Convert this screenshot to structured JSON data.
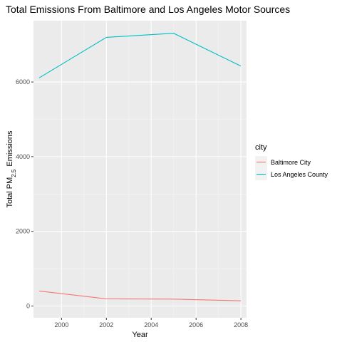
{
  "chart_data": {
    "type": "line",
    "title": "Total Emissions From Baltimore and Los Angeles Motor Sources",
    "xlabel": "Year",
    "ylabel_prefix": "Total PM",
    "ylabel_subscript": "2.5",
    "ylabel_suffix": " Emissions",
    "x": [
      1999,
      2002,
      2005,
      2008
    ],
    "xlim": [
      1998.75,
      2008.25
    ],
    "ylim": [
      -315,
      7642
    ],
    "x_ticks": [
      2000,
      2002,
      2004,
      2006,
      2008
    ],
    "y_ticks": [
      0,
      2000,
      4000,
      6000
    ],
    "x_tick_labels": [
      "2000",
      "2002",
      "2004",
      "2006",
      "2008"
    ],
    "y_tick_labels": [
      "0",
      "2000",
      "4000",
      "6000"
    ],
    "grid": true,
    "legend": {
      "title": "city",
      "placement": "right"
    },
    "series": [
      {
        "name": "Baltimore City",
        "color": "#F8766D",
        "values": [
          403,
          192,
          185,
          139
        ]
      },
      {
        "name": "Los Angeles County",
        "color": "#00BFC4",
        "values": [
          6110,
          7195,
          7305,
          6425
        ]
      }
    ]
  }
}
